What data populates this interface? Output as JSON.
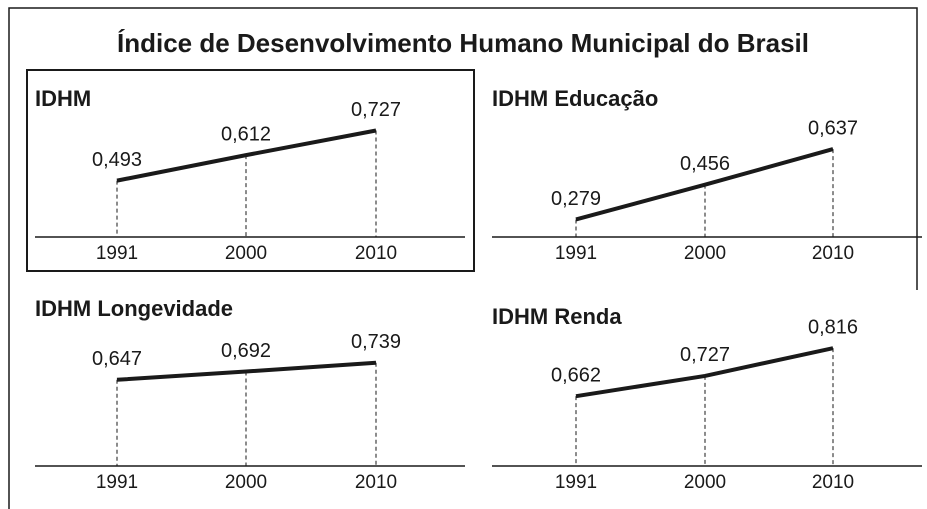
{
  "title": "Índice de Desenvolvimento Humano Municipal do Brasil",
  "chart_data": [
    {
      "type": "line",
      "title": "IDHM",
      "categories": [
        "1991",
        "2000",
        "2010"
      ],
      "series": [
        {
          "color": "#1a1a1a",
          "values": [
            0.493,
            0.612,
            0.727
          ]
        }
      ],
      "value_labels": [
        "0,493",
        "0,612",
        "0,727"
      ],
      "ylim": [
        0.23,
        0.79
      ],
      "frame": true
    },
    {
      "type": "line",
      "title": "IDHM Educação",
      "categories": [
        "1991",
        "2000",
        "2010"
      ],
      "series": [
        {
          "color": "#1a1a1a",
          "values": [
            0.279,
            0.456,
            0.637
          ]
        }
      ],
      "value_labels": [
        "0,279",
        "0,456",
        "0,637"
      ],
      "ylim": [
        0.19,
        0.8
      ]
    },
    {
      "type": "line",
      "title": "IDHM Longevidade",
      "categories": [
        "1991",
        "2000",
        "2010"
      ],
      "series": [
        {
          "color": "#1a1a1a",
          "values": [
            0.647,
            0.692,
            0.739
          ]
        }
      ],
      "value_labels": [
        "0,647",
        "0,692",
        "0,739"
      ],
      "ylim": [
        0.18,
        0.83
      ]
    },
    {
      "type": "line",
      "title": "IDHM Renda",
      "categories": [
        "1991",
        "2000",
        "2010"
      ],
      "series": [
        {
          "color": "#1a1a1a",
          "values": [
            0.662,
            0.727,
            0.816
          ]
        }
      ],
      "value_labels": [
        "0,662",
        "0,727",
        "0,816"
      ],
      "ylim": [
        0.438,
        0.823
      ]
    }
  ]
}
